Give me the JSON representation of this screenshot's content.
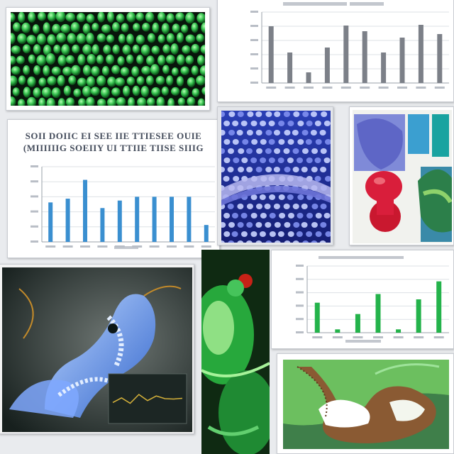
{
  "collage": {
    "chart_a": {
      "title_line1": "SOII DOIIC EI SEE IIE TTIESEE OUIE",
      "title_line2": "(MIIIIIIG SOEIIY UI TTIIE TIISE SIIIG"
    }
  },
  "chart_data": [
    {
      "type": "bar",
      "title": "SOII DOIIC EI SEE IIE TTIESEE OUIE (MIIIIIIG SOEIIY UI TTIIE TIISE SIIIG",
      "values": [
        21,
        23,
        33,
        18,
        22,
        24,
        24,
        24,
        24,
        9
      ],
      "ylim": [
        0,
        40
      ],
      "grid": true,
      "colors": {
        "bar": "#3a8fd0"
      }
    },
    {
      "type": "bar",
      "values": [
        80,
        43,
        15,
        50,
        81,
        73,
        43,
        64,
        82,
        69
      ],
      "ylim": [
        0,
        100
      ],
      "grid": true,
      "colors": {
        "bar": "#7c8088"
      }
    },
    {
      "type": "bar",
      "values": [
        45,
        5,
        28,
        58,
        5,
        50,
        77
      ],
      "ylim": [
        0,
        100
      ],
      "grid": true,
      "colors": {
        "bar": "#24b34b"
      }
    },
    {
      "type": "line",
      "values": [
        40,
        52,
        38,
        61,
        45,
        57,
        50,
        49,
        51
      ],
      "ylim": [
        0,
        100
      ],
      "colors": {
        "line": "#d6b23a"
      }
    }
  ]
}
